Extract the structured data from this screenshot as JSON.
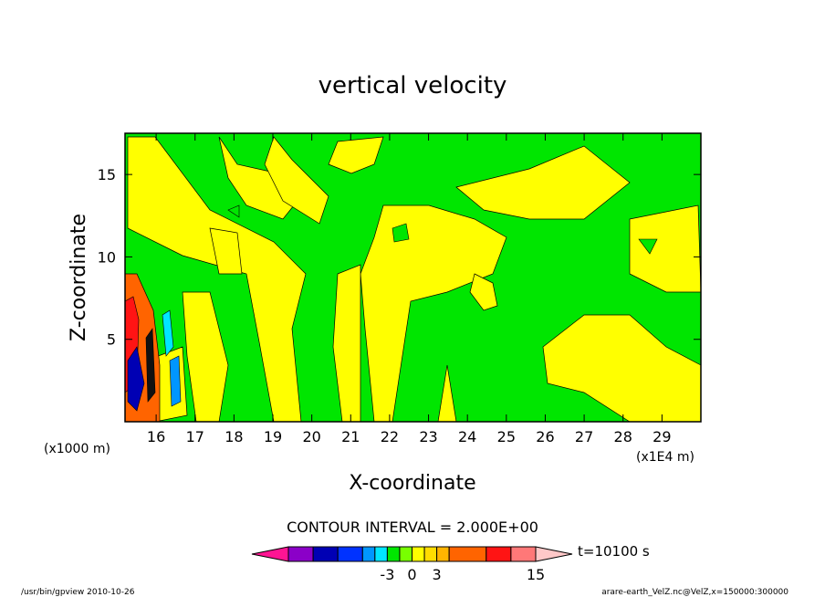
{
  "chart_data": {
    "type": "heatmap",
    "title": "vertical velocity",
    "xlabel": "X-coordinate",
    "ylabel": "Z-coordinate",
    "x_unit_left": "(x1000 m)",
    "x_unit_right": "(x1E4 m)",
    "xlim": [
      15.2,
      30.0
    ],
    "ylim": [
      0.0,
      17.5
    ],
    "x_ticks": [
      "16",
      "17",
      "18",
      "19",
      "20",
      "21",
      "22",
      "23",
      "24",
      "25",
      "26",
      "27",
      "28",
      "29"
    ],
    "y_ticks": [
      "5",
      "10",
      "15"
    ],
    "contour_interval": "CONTOUR INTERVAL = 2.000E+00",
    "colorbar": {
      "colors": [
        "#ff1493",
        "#8b00c8",
        "#0000b4",
        "#0032ff",
        "#0096ff",
        "#00e6ff",
        "#00e600",
        "#78ff00",
        "#ffff00",
        "#ffdc00",
        "#ffb400",
        "#ff6400",
        "#ff1414",
        "#ff7878",
        "#ffc8c8"
      ],
      "widths": [
        1,
        1,
        1,
        1,
        0.5,
        0.5,
        0.5,
        0.5,
        0.5,
        0.5,
        0.5,
        1.5,
        1,
        1,
        1
      ],
      "labels": [
        "-3",
        "0",
        "3",
        "15"
      ],
      "label_after_index": [
        5,
        7,
        9,
        14
      ]
    },
    "time_label": "t=10100 s",
    "zero_band_color": "#00e600",
    "positive_band_color": "#ffff00"
  },
  "footer": {
    "left": "/usr/bin/gpview  2010-10-26",
    "right": "arare-earth_VelZ.nc@VelZ,x=150000:300000"
  }
}
